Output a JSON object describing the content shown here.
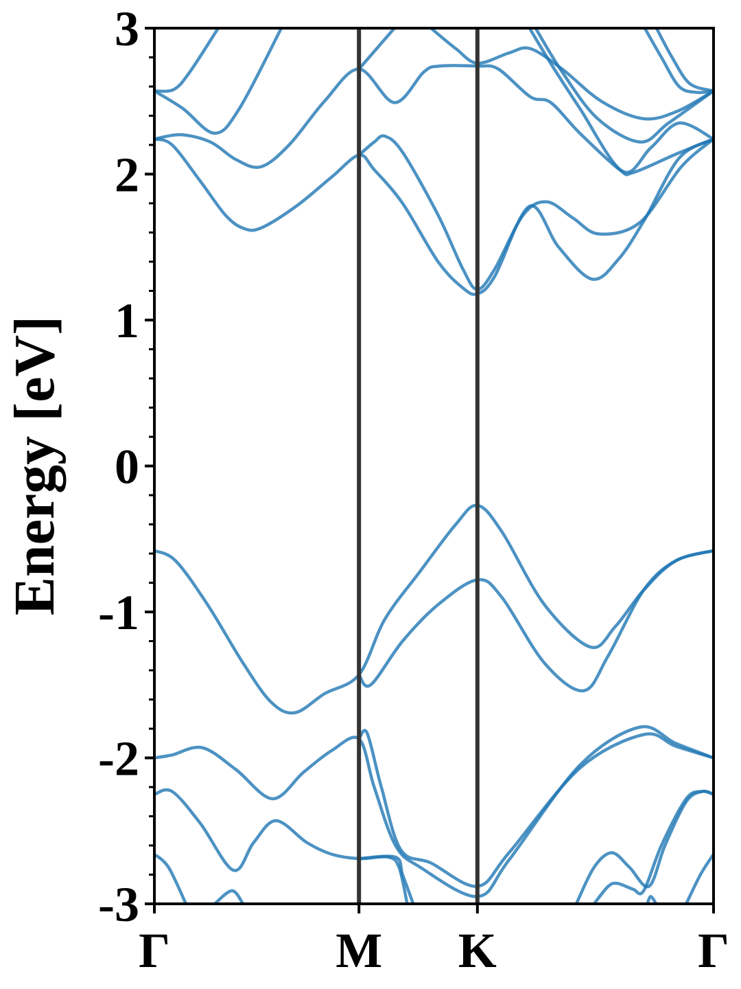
{
  "chart_data": {
    "type": "line",
    "title": "",
    "xlabel": "",
    "ylabel": "Energy [eV]",
    "ylim": [
      -3,
      3
    ],
    "xlim": [
      0,
      1.577
    ],
    "yticks_major": [
      -3,
      -2,
      -1,
      0,
      1,
      2,
      3
    ],
    "yticks_minor_step": 0.2,
    "high_symmetry_points": [
      {
        "label": "Γ",
        "k": 0
      },
      {
        "label": "M",
        "k": 0.577
      },
      {
        "label": "K",
        "k": 0.911
      },
      {
        "label": "Γ",
        "k": 1.577
      }
    ],
    "band_color": "#1f77b4",
    "symmetry_line_color": "#333333",
    "grid": false,
    "series": [
      {
        "points": [
          [
            0,
            2.24
          ],
          [
            0.05,
            2.2
          ],
          [
            0.13,
            1.95
          ],
          [
            0.2,
            1.72
          ],
          [
            0.25,
            1.63
          ],
          [
            0.3,
            1.63
          ],
          [
            0.4,
            1.78
          ],
          [
            0.5,
            1.98
          ],
          [
            0.577,
            2.13
          ],
          [
            0.62,
            2.03
          ],
          [
            0.7,
            1.8
          ],
          [
            0.8,
            1.4
          ],
          [
            0.87,
            1.22
          ],
          [
            0.911,
            1.18
          ],
          [
            0.96,
            1.3
          ],
          [
            1.058,
            1.78
          ],
          [
            1.14,
            1.5
          ],
          [
            1.235,
            1.28
          ],
          [
            1.31,
            1.42
          ],
          [
            1.383,
            1.69
          ],
          [
            1.48,
            2.11
          ],
          [
            1.577,
            2.24
          ]
        ]
      },
      {
        "points": [
          [
            0.577,
            2.13
          ],
          [
            0.62,
            2.22
          ],
          [
            0.65,
            2.26
          ],
          [
            0.7,
            2.15
          ],
          [
            0.8,
            1.72
          ],
          [
            0.87,
            1.35
          ],
          [
            0.911,
            1.21
          ],
          [
            0.96,
            1.35
          ],
          [
            1.04,
            1.72
          ],
          [
            1.107,
            1.81
          ],
          [
            1.18,
            1.7
          ],
          [
            1.254,
            1.59
          ],
          [
            1.37,
            1.67
          ],
          [
            1.486,
            2.05
          ],
          [
            1.577,
            2.24
          ]
        ]
      },
      {
        "points": [
          [
            0,
            2.24
          ],
          [
            0.074,
            2.27
          ],
          [
            0.158,
            2.22
          ],
          [
            0.23,
            2.1
          ],
          [
            0.3,
            2.05
          ],
          [
            0.38,
            2.2
          ],
          [
            0.48,
            2.5
          ],
          [
            0.577,
            2.72
          ],
          [
            0.677,
            2.49
          ],
          [
            0.76,
            2.7
          ],
          [
            0.803,
            2.74
          ],
          [
            0.911,
            2.74
          ],
          [
            0.97,
            2.72
          ],
          [
            1.06,
            2.53
          ],
          [
            1.118,
            2.49
          ],
          [
            1.2,
            2.28
          ],
          [
            1.312,
            2.03
          ],
          [
            1.35,
            2.01
          ],
          [
            1.474,
            2.14
          ],
          [
            1.577,
            2.24
          ]
        ]
      },
      {
        "points": [
          [
            0.577,
            2.72
          ],
          [
            0.627,
            2.86
          ],
          [
            0.677,
            3.0
          ]
        ]
      },
      {
        "points": [
          [
            0.78,
            3.0
          ],
          [
            0.85,
            2.86
          ],
          [
            0.911,
            2.76
          ],
          [
            1.0,
            2.83
          ],
          [
            1.06,
            2.86
          ],
          [
            1.15,
            2.72
          ],
          [
            1.26,
            2.5
          ],
          [
            1.378,
            2.38
          ],
          [
            1.474,
            2.43
          ],
          [
            1.577,
            2.57
          ]
        ]
      },
      {
        "points": [
          [
            1.058,
            3.0
          ],
          [
            1.12,
            2.75
          ],
          [
            1.2,
            2.45
          ],
          [
            1.32,
            2.02
          ],
          [
            1.4,
            2.18
          ],
          [
            1.48,
            2.35
          ],
          [
            1.577,
            2.24
          ]
        ]
      },
      {
        "points": [
          [
            1.075,
            3.0
          ],
          [
            1.15,
            2.7
          ],
          [
            1.25,
            2.38
          ],
          [
            1.37,
            2.22
          ],
          [
            1.45,
            2.35
          ],
          [
            1.577,
            2.57
          ]
        ]
      },
      {
        "points": [
          [
            1.383,
            3.0
          ],
          [
            1.43,
            2.8
          ],
          [
            1.48,
            2.6
          ],
          [
            1.53,
            2.56
          ],
          [
            1.577,
            2.57
          ]
        ]
      },
      {
        "points": [
          [
            1.416,
            3.0
          ],
          [
            1.46,
            2.8
          ],
          [
            1.51,
            2.62
          ],
          [
            1.577,
            2.57
          ]
        ]
      },
      {
        "points": [
          [
            0,
            2.57
          ],
          [
            0.055,
            2.58
          ],
          [
            0.1,
            2.7
          ],
          [
            0.18,
            3.0
          ]
        ]
      },
      {
        "points": [
          [
            0,
            2.57
          ],
          [
            0.08,
            2.45
          ],
          [
            0.17,
            2.28
          ],
          [
            0.24,
            2.45
          ],
          [
            0.358,
            3.0
          ]
        ]
      },
      {
        "points": [
          [
            0,
            -0.58
          ],
          [
            0.06,
            -0.65
          ],
          [
            0.15,
            -0.95
          ],
          [
            0.25,
            -1.35
          ],
          [
            0.33,
            -1.62
          ],
          [
            0.397,
            -1.69
          ],
          [
            0.48,
            -1.56
          ],
          [
            0.577,
            -1.43
          ],
          [
            0.65,
            -1.05
          ],
          [
            0.75,
            -0.72
          ],
          [
            0.85,
            -0.4
          ],
          [
            0.911,
            -0.27
          ],
          [
            0.98,
            -0.45
          ],
          [
            1.1,
            -0.95
          ],
          [
            1.229,
            -1.24
          ],
          [
            1.3,
            -1.1
          ],
          [
            1.38,
            -0.85
          ],
          [
            1.47,
            -0.65
          ],
          [
            1.577,
            -0.58
          ]
        ]
      },
      {
        "points": [
          [
            0.577,
            -1.43
          ],
          [
            0.61,
            -1.5
          ],
          [
            0.7,
            -1.2
          ],
          [
            0.8,
            -0.95
          ],
          [
            0.911,
            -0.78
          ],
          [
            0.98,
            -0.9
          ],
          [
            1.1,
            -1.35
          ],
          [
            1.21,
            -1.54
          ],
          [
            1.28,
            -1.3
          ],
          [
            1.38,
            -0.85
          ],
          [
            1.47,
            -0.65
          ],
          [
            1.577,
            -0.58
          ]
        ]
      },
      {
        "points": [
          [
            0,
            -2.0
          ],
          [
            0.05,
            -1.98
          ],
          [
            0.135,
            -1.93
          ],
          [
            0.23,
            -2.08
          ],
          [
            0.333,
            -2.28
          ],
          [
            0.42,
            -2.1
          ],
          [
            0.5,
            -1.95
          ],
          [
            0.577,
            -1.87
          ],
          [
            0.62,
            -2.2
          ],
          [
            0.68,
            -2.6
          ],
          [
            0.75,
            -2.75
          ],
          [
            0.911,
            -2.95
          ],
          [
            1.0,
            -2.7
          ],
          [
            1.2,
            -2.05
          ],
          [
            1.368,
            -1.79
          ],
          [
            1.47,
            -1.9
          ],
          [
            1.577,
            -2.0
          ]
        ]
      },
      {
        "points": [
          [
            0.577,
            -1.87
          ],
          [
            0.6,
            -1.83
          ],
          [
            0.64,
            -2.2
          ],
          [
            0.695,
            -2.63
          ],
          [
            0.78,
            -2.72
          ],
          [
            0.911,
            -2.88
          ],
          [
            1.0,
            -2.65
          ],
          [
            1.2,
            -2.07
          ],
          [
            1.38,
            -1.84
          ],
          [
            1.47,
            -1.92
          ],
          [
            1.577,
            -2.0
          ]
        ]
      },
      {
        "points": [
          [
            0,
            -2.25
          ],
          [
            0.05,
            -2.23
          ],
          [
            0.13,
            -2.45
          ],
          [
            0.223,
            -2.77
          ],
          [
            0.28,
            -2.58
          ],
          [
            0.343,
            -2.43
          ],
          [
            0.43,
            -2.58
          ],
          [
            0.5,
            -2.66
          ],
          [
            0.577,
            -2.69
          ],
          [
            0.66,
            -2.68
          ],
          [
            0.69,
            -2.75
          ],
          [
            0.713,
            -3.0
          ]
        ]
      },
      {
        "points": [
          [
            0.577,
            -2.69
          ],
          [
            0.68,
            -2.68
          ],
          [
            0.7,
            -2.8
          ],
          [
            0.73,
            -3.0
          ]
        ]
      },
      {
        "points": [
          [
            1.19,
            -3.0
          ],
          [
            1.24,
            -2.75
          ],
          [
            1.29,
            -2.65
          ],
          [
            1.34,
            -2.75
          ],
          [
            1.395,
            -2.88
          ],
          [
            1.44,
            -2.6
          ],
          [
            1.5,
            -2.3
          ],
          [
            1.545,
            -2.23
          ],
          [
            1.577,
            -2.25
          ]
        ]
      },
      {
        "points": [
          [
            1.24,
            -3.0
          ],
          [
            1.28,
            -2.88
          ],
          [
            1.306,
            -2.86
          ],
          [
            1.35,
            -2.9
          ],
          [
            1.38,
            -2.91
          ],
          [
            1.43,
            -2.6
          ],
          [
            1.5,
            -2.28
          ],
          [
            1.545,
            -2.23
          ],
          [
            1.577,
            -2.25
          ]
        ]
      },
      {
        "points": [
          [
            1.39,
            -3.0
          ],
          [
            1.4,
            -2.95
          ],
          [
            1.415,
            -3.0
          ]
        ]
      },
      {
        "points": [
          [
            0,
            -2.66
          ],
          [
            0.04,
            -2.75
          ],
          [
            0.089,
            -3.0
          ]
        ]
      },
      {
        "points": [
          [
            0.17,
            -3.0
          ],
          [
            0.219,
            -2.91
          ],
          [
            0.25,
            -3.0
          ]
        ]
      },
      {
        "points": [
          [
            1.5,
            -3.0
          ],
          [
            1.54,
            -2.8
          ],
          [
            1.577,
            -2.66
          ]
        ]
      }
    ]
  }
}
